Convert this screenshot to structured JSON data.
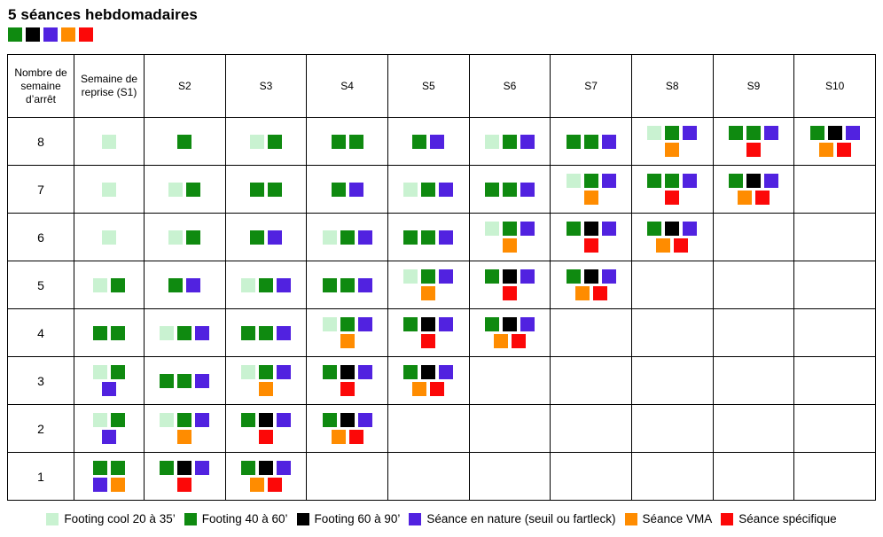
{
  "title": "5 séances hebdomadaires",
  "title_squares": [
    "g",
    "k",
    "b",
    "o",
    "r"
  ],
  "colors": {
    "lg": "#c9f2d1",
    "g": "#0f8a10",
    "k": "#000000",
    "b": "#5122e0",
    "o": "#ff8c00",
    "r": "#fc0808"
  },
  "color_names": {
    "lg": "footing-cool",
    "g": "footing-40-60",
    "k": "footing-60-90",
    "b": "seance-nature",
    "o": "seance-vma",
    "r": "seance-specifique"
  },
  "table": {
    "columns": [
      "Nombre de semaine d’arrêt",
      "Semaine de reprise (S1)",
      "S2",
      "S3",
      "S4",
      "S5",
      "S6",
      "S7",
      "S8",
      "S9",
      "S10"
    ],
    "rows": [
      {
        "weeks": "8",
        "cells": [
          [
            [
              "lg"
            ]
          ],
          [
            [
              "g"
            ]
          ],
          [
            [
              "lg",
              "g"
            ]
          ],
          [
            [
              "g",
              "g"
            ]
          ],
          [
            [
              "g",
              "b"
            ]
          ],
          [
            [
              "lg",
              "g",
              "b"
            ]
          ],
          [
            [
              "g",
              "g",
              "b"
            ]
          ],
          [
            [
              "lg",
              "g",
              "b"
            ],
            [
              "o"
            ]
          ],
          [
            [
              "g",
              "g",
              "b"
            ],
            [
              "r"
            ]
          ],
          [
            [
              "g",
              "k",
              "b"
            ],
            [
              "o",
              "r"
            ]
          ]
        ]
      },
      {
        "weeks": "7",
        "cells": [
          [
            [
              "lg"
            ]
          ],
          [
            [
              "lg",
              "g"
            ]
          ],
          [
            [
              "g",
              "g"
            ]
          ],
          [
            [
              "g",
              "b"
            ]
          ],
          [
            [
              "lg",
              "g",
              "b"
            ]
          ],
          [
            [
              "g",
              "g",
              "b"
            ]
          ],
          [
            [
              "lg",
              "g",
              "b"
            ],
            [
              "o"
            ]
          ],
          [
            [
              "g",
              "g",
              "b"
            ],
            [
              "r"
            ]
          ],
          [
            [
              "g",
              "k",
              "b"
            ],
            [
              "o",
              "r"
            ]
          ],
          []
        ]
      },
      {
        "weeks": "6",
        "cells": [
          [
            [
              "lg"
            ]
          ],
          [
            [
              "lg",
              "g"
            ]
          ],
          [
            [
              "g",
              "b"
            ]
          ],
          [
            [
              "lg",
              "g",
              "b"
            ]
          ],
          [
            [
              "g",
              "g",
              "b"
            ]
          ],
          [
            [
              "lg",
              "g",
              "b"
            ],
            [
              "o"
            ]
          ],
          [
            [
              "g",
              "k",
              "b"
            ],
            [
              "r"
            ]
          ],
          [
            [
              "g",
              "k",
              "b"
            ],
            [
              "o",
              "r"
            ]
          ],
          [],
          []
        ]
      },
      {
        "weeks": "5",
        "cells": [
          [
            [
              "lg",
              "g"
            ]
          ],
          [
            [
              "g",
              "b"
            ]
          ],
          [
            [
              "lg",
              "g",
              "b"
            ]
          ],
          [
            [
              "g",
              "g",
              "b"
            ]
          ],
          [
            [
              "lg",
              "g",
              "b"
            ],
            [
              "o"
            ]
          ],
          [
            [
              "g",
              "k",
              "b"
            ],
            [
              "r"
            ]
          ],
          [
            [
              "g",
              "k",
              "b"
            ],
            [
              "o",
              "r"
            ]
          ],
          [],
          [],
          []
        ]
      },
      {
        "weeks": "4",
        "cells": [
          [
            [
              "g",
              "g"
            ]
          ],
          [
            [
              "lg",
              "g",
              "b"
            ]
          ],
          [
            [
              "g",
              "g",
              "b"
            ]
          ],
          [
            [
              "lg",
              "g",
              "b"
            ],
            [
              "o"
            ]
          ],
          [
            [
              "g",
              "k",
              "b"
            ],
            [
              "r"
            ]
          ],
          [
            [
              "g",
              "k",
              "b"
            ],
            [
              "o",
              "r"
            ]
          ],
          [],
          [],
          [],
          []
        ]
      },
      {
        "weeks": "3",
        "cells": [
          [
            [
              "lg",
              "g"
            ],
            [
              "b"
            ]
          ],
          [
            [
              "g",
              "g",
              "b"
            ]
          ],
          [
            [
              "lg",
              "g",
              "b"
            ],
            [
              "o"
            ]
          ],
          [
            [
              "g",
              "k",
              "b"
            ],
            [
              "r"
            ]
          ],
          [
            [
              "g",
              "k",
              "b"
            ],
            [
              "o",
              "r"
            ]
          ],
          [],
          [],
          [],
          [],
          []
        ]
      },
      {
        "weeks": "2",
        "cells": [
          [
            [
              "lg",
              "g"
            ],
            [
              "b"
            ]
          ],
          [
            [
              "lg",
              "g",
              "b"
            ],
            [
              "o"
            ]
          ],
          [
            [
              "g",
              "k",
              "b"
            ],
            [
              "r"
            ]
          ],
          [
            [
              "g",
              "k",
              "b"
            ],
            [
              "o",
              "r"
            ]
          ],
          [],
          [],
          [],
          [],
          [],
          []
        ]
      },
      {
        "weeks": "1",
        "cells": [
          [
            [
              "g",
              "g"
            ],
            [
              "b",
              "o"
            ]
          ],
          [
            [
              "g",
              "k",
              "b"
            ],
            [
              "r"
            ]
          ],
          [
            [
              "g",
              "k",
              "b"
            ],
            [
              "o",
              "r"
            ]
          ],
          [],
          [],
          [],
          [],
          [],
          [],
          []
        ]
      }
    ]
  },
  "legend": [
    {
      "code": "lg",
      "label": "Footing cool 20 à 35’"
    },
    {
      "code": "g",
      "label": "Footing 40 à 60’"
    },
    {
      "code": "k",
      "label": "Footing 60 à 90’"
    },
    {
      "code": "b",
      "label": "Séance en nature (seuil ou fartleck)"
    },
    {
      "code": "o",
      "label": "Séance VMA"
    },
    {
      "code": "r",
      "label": "Séance spécifique"
    }
  ]
}
